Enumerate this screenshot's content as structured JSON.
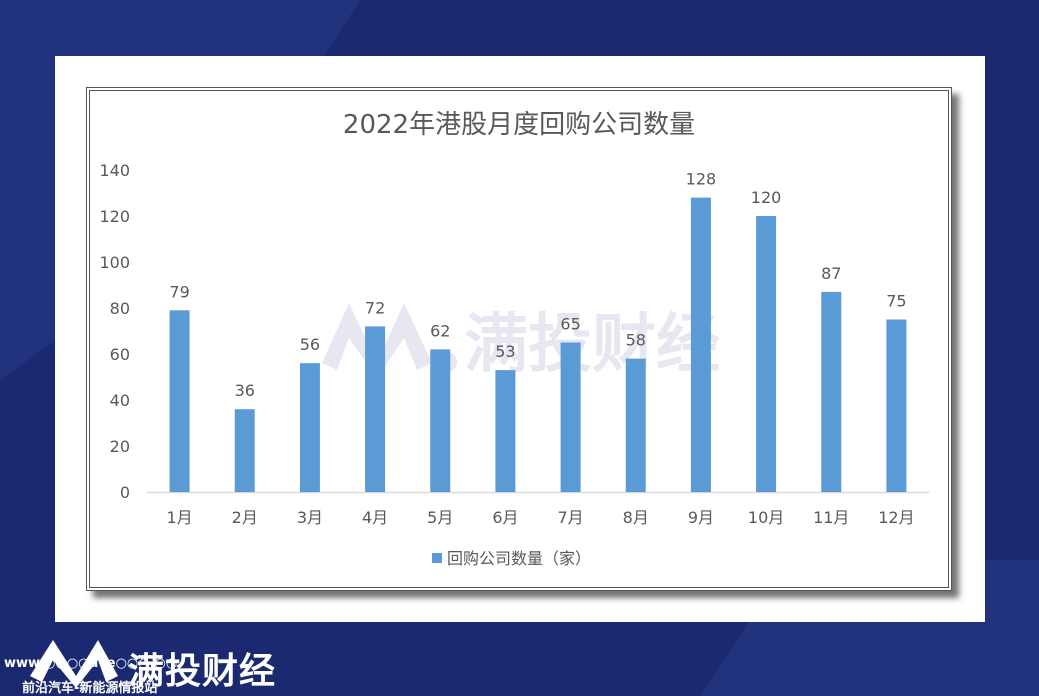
{
  "brand": {
    "name": "满投财经",
    "watermark": "满投财经",
    "url": "www.○○○○ave○○○.○○",
    "tagline": "前沿汽车-新能源情报站"
  },
  "colors": {
    "background": "#1b2a70",
    "bar": "#5b9bd5",
    "text": "#595959",
    "title": "#595959",
    "axis": "#d9d9d9"
  },
  "chart_data": {
    "type": "bar",
    "title": "2022年港股月度回购公司数量",
    "categories": [
      "1月",
      "2月",
      "3月",
      "4月",
      "5月",
      "6月",
      "7月",
      "8月",
      "9月",
      "10月",
      "11月",
      "12月"
    ],
    "series": [
      {
        "name": "回购公司数量（家）",
        "values": [
          79,
          36,
          56,
          72,
          62,
          53,
          65,
          58,
          128,
          120,
          87,
          75
        ]
      }
    ],
    "ylim": [
      0,
      140
    ],
    "yticks": [
      0,
      20,
      40,
      60,
      80,
      100,
      120,
      140
    ],
    "xlabel": "",
    "ylabel": "",
    "grid": false,
    "legend": "bottom",
    "data_labels": true
  }
}
